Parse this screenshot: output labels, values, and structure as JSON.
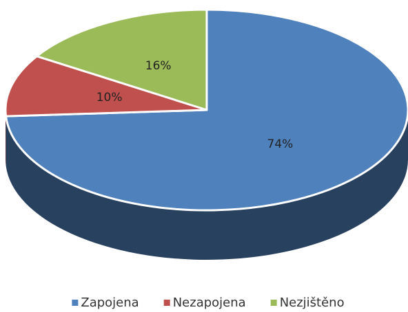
{
  "chart_data": {
    "type": "pie3d",
    "categories": [
      "Zapojena",
      "Nezapojena",
      "Nezjištěno"
    ],
    "values": [
      74,
      10,
      16
    ],
    "value_labels": [
      "74%",
      "10%",
      "16%"
    ],
    "colors": [
      "#4f81bd",
      "#c0504d",
      "#9bbb59"
    ],
    "legend": "bottom"
  }
}
